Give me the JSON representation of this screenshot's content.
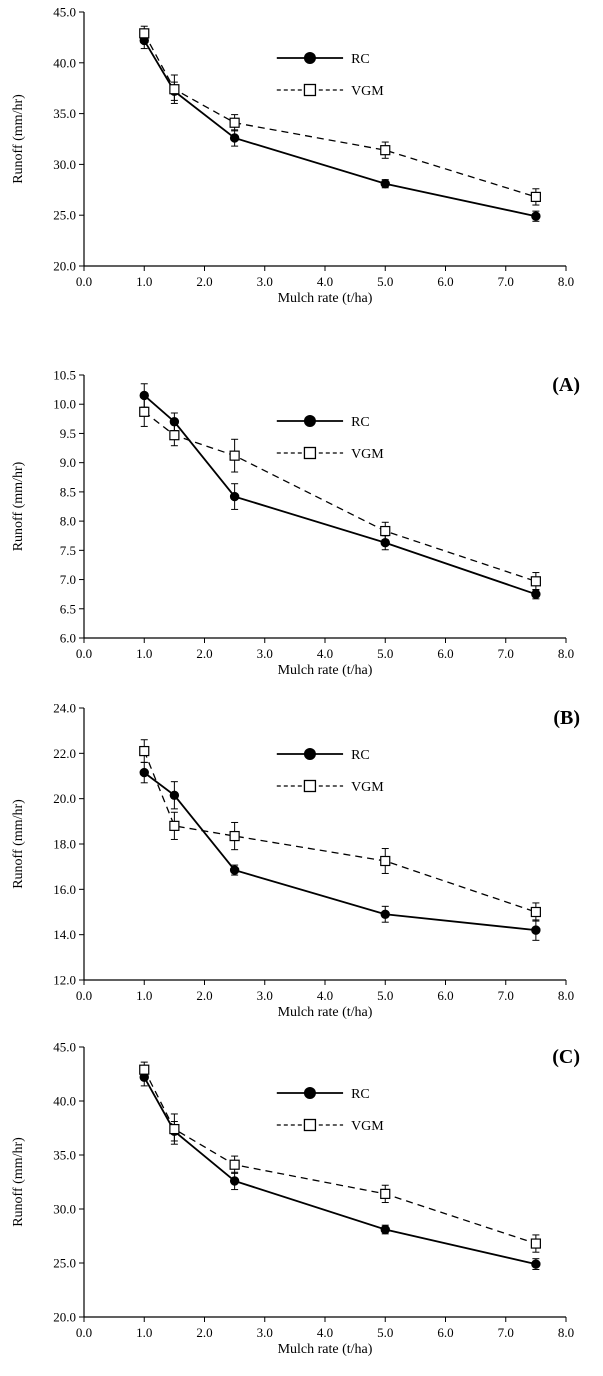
{
  "chart_data": [
    {
      "type": "line",
      "panel_label": "",
      "xlabel": "Mulch rate (t/ha)",
      "ylabel": "Runoff (mm/hr)",
      "xlim": [
        0.0,
        8.0
      ],
      "ylim": [
        20.0,
        45.0
      ],
      "xticks": [
        "0.0",
        "1.0",
        "2.0",
        "3.0",
        "4.0",
        "5.0",
        "6.0",
        "7.0",
        "8.0"
      ],
      "yticks": [
        "20.0",
        "25.0",
        "30.0",
        "35.0",
        "40.0",
        "45.0"
      ],
      "x": [
        1.0,
        1.5,
        2.5,
        5.0,
        7.5
      ],
      "legend_position": "upper-center",
      "series": [
        {
          "name": "RC",
          "values": [
            42.2,
            37.2,
            32.6,
            28.1,
            24.9
          ],
          "errors": [
            0.8,
            0.9,
            0.8,
            0.4,
            0.5
          ],
          "marker": "filled-circle",
          "line": "solid"
        },
        {
          "name": "VGM",
          "values": [
            42.9,
            37.4,
            34.1,
            31.4,
            26.8
          ],
          "errors": [
            0.7,
            1.4,
            0.8,
            0.8,
            0.8
          ],
          "marker": "open-square",
          "line": "dashed"
        }
      ]
    },
    {
      "type": "line",
      "panel_label": "(A)",
      "xlabel": "Mulch rate (t/ha)",
      "ylabel": "Runoff (mm/hr)",
      "xlim": [
        0.0,
        8.0
      ],
      "ylim": [
        6.0,
        10.5
      ],
      "xticks": [
        "0.0",
        "1.0",
        "2.0",
        "3.0",
        "4.0",
        "5.0",
        "6.0",
        "7.0",
        "8.0"
      ],
      "yticks": [
        "6.0",
        "6.5",
        "7.0",
        "7.5",
        "8.0",
        "8.5",
        "9.0",
        "9.5",
        "10.0",
        "10.5"
      ],
      "x": [
        1.0,
        1.5,
        2.5,
        5.0,
        7.5
      ],
      "legend_position": "upper-center",
      "series": [
        {
          "name": "RC",
          "values": [
            10.15,
            9.7,
            8.42,
            7.63,
            6.75
          ],
          "errors": [
            0.2,
            0.15,
            0.22,
            0.12,
            0.08
          ],
          "marker": "filled-circle",
          "line": "solid"
        },
        {
          "name": "VGM",
          "values": [
            9.87,
            9.47,
            9.12,
            7.83,
            6.97
          ],
          "errors": [
            0.25,
            0.18,
            0.28,
            0.15,
            0.15
          ],
          "marker": "open-square",
          "line": "dashed"
        }
      ]
    },
    {
      "type": "line",
      "panel_label": "(B)",
      "xlabel": "Mulch rate (t/ha)",
      "ylabel": "Runoff (mm/hr)",
      "xlim": [
        0.0,
        8.0
      ],
      "ylim": [
        12.0,
        24.0
      ],
      "xticks": [
        "0.0",
        "1.0",
        "2.0",
        "3.0",
        "4.0",
        "5.0",
        "6.0",
        "7.0",
        "8.0"
      ],
      "yticks": [
        "12.0",
        "14.0",
        "16.0",
        "18.0",
        "20.0",
        "22.0",
        "24.0"
      ],
      "x": [
        1.0,
        1.5,
        2.5,
        5.0,
        7.5
      ],
      "legend_position": "upper-center",
      "series": [
        {
          "name": "RC",
          "values": [
            21.15,
            20.15,
            16.85,
            14.9,
            14.2
          ],
          "errors": [
            0.45,
            0.6,
            0.22,
            0.35,
            0.45
          ],
          "marker": "filled-circle",
          "line": "solid"
        },
        {
          "name": "VGM",
          "values": [
            22.1,
            18.8,
            18.35,
            17.25,
            15.0
          ],
          "errors": [
            0.5,
            0.6,
            0.6,
            0.55,
            0.4
          ],
          "marker": "open-square",
          "line": "dashed"
        }
      ]
    },
    {
      "type": "line",
      "panel_label": "(C)",
      "xlabel": "Mulch rate (t/ha)",
      "ylabel": "Runoff (mm/hr)",
      "xlim": [
        0.0,
        8.0
      ],
      "ylim": [
        20.0,
        45.0
      ],
      "xticks": [
        "0.0",
        "1.0",
        "2.0",
        "3.0",
        "4.0",
        "5.0",
        "6.0",
        "7.0",
        "8.0"
      ],
      "yticks": [
        "20.0",
        "25.0",
        "30.0",
        "35.0",
        "40.0",
        "45.0"
      ],
      "x": [
        1.0,
        1.5,
        2.5,
        5.0,
        7.5
      ],
      "legend_position": "upper-center",
      "series": [
        {
          "name": "RC",
          "values": [
            42.2,
            37.2,
            32.6,
            28.1,
            24.9
          ],
          "errors": [
            0.8,
            0.9,
            0.8,
            0.4,
            0.5
          ],
          "marker": "filled-circle",
          "line": "solid"
        },
        {
          "name": "VGM",
          "values": [
            42.9,
            37.4,
            34.1,
            31.4,
            26.8
          ],
          "errors": [
            0.7,
            1.4,
            0.8,
            0.8,
            0.8
          ],
          "marker": "open-square",
          "line": "dashed"
        }
      ]
    }
  ]
}
